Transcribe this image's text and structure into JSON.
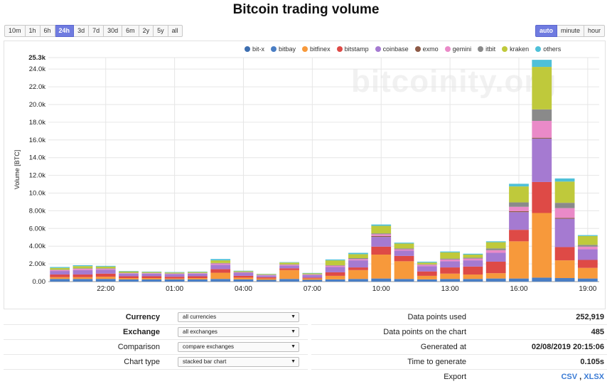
{
  "title": "Bitcoin trading volume",
  "watermark": "bitcoinity.org",
  "range_buttons": [
    {
      "label": "10m",
      "active": false
    },
    {
      "label": "1h",
      "active": false
    },
    {
      "label": "6h",
      "active": false
    },
    {
      "label": "24h",
      "active": true
    },
    {
      "label": "3d",
      "active": false
    },
    {
      "label": "7d",
      "active": false
    },
    {
      "label": "30d",
      "active": false
    },
    {
      "label": "6m",
      "active": false
    },
    {
      "label": "2y",
      "active": false
    },
    {
      "label": "5y",
      "active": false
    },
    {
      "label": "all",
      "active": false
    }
  ],
  "resolution_buttons": [
    {
      "label": "auto",
      "active": true
    },
    {
      "label": "minute",
      "active": false
    },
    {
      "label": "hour",
      "active": false
    }
  ],
  "controls": [
    {
      "label": "Currency",
      "bold": true,
      "value": "all currencies"
    },
    {
      "label": "Exchange",
      "bold": true,
      "value": "all exchanges"
    },
    {
      "label": "Comparison",
      "bold": false,
      "value": "compare exchanges"
    },
    {
      "label": "Chart type",
      "bold": false,
      "value": "stacked bar chart"
    }
  ],
  "stats": {
    "data_points_used": {
      "label": "Data points used",
      "value": "252,919"
    },
    "data_points_chart": {
      "label": "Data points on the chart",
      "value": "485"
    },
    "generated_at": {
      "label": "Generated at",
      "value": "02/08/2019 20:15:06"
    },
    "time_to_generate": {
      "label": "Time to generate",
      "value": "0.105s"
    },
    "export": {
      "label": "Export",
      "csv": "CSV",
      "sep": " , ",
      "xlsx": "XLSX"
    }
  },
  "chart_data": {
    "type": "bar",
    "stacked": true,
    "ylabel": "Volume [BTC]",
    "ylim": [
      0,
      25300
    ],
    "y_ticks": [
      "0.00",
      "2.00k",
      "4.00k",
      "6.00k",
      "8.00k",
      "10.0k",
      "12.0k",
      "14.0k",
      "16.0k",
      "18.0k",
      "20.0k",
      "22.0k",
      "24.0k",
      "25.3k"
    ],
    "y_tick_values": [
      0,
      2000,
      4000,
      6000,
      8000,
      10000,
      12000,
      14000,
      16000,
      18000,
      20000,
      22000,
      24000,
      25300
    ],
    "x_ticks": [
      "22:00",
      "01:00",
      "04:00",
      "07:00",
      "10:00",
      "13:00",
      "16:00",
      "19:00"
    ],
    "x_tick_positions": [
      2.5,
      5.5,
      8.5,
      11.5,
      14.5,
      17.5,
      20.5,
      23.5
    ],
    "categories": [
      "20:00",
      "21:00",
      "22:00",
      "23:00",
      "00:00",
      "01:00",
      "02:00",
      "03:00",
      "04:00",
      "05:00",
      "06:00",
      "07:00",
      "08:00",
      "09:00",
      "10:00",
      "11:00",
      "12:00",
      "13:00",
      "14:00",
      "15:00",
      "16:00",
      "17:00",
      "18:00",
      "19:00"
    ],
    "legend_position": "top-right",
    "series": [
      {
        "name": "bit-x",
        "color": "#3d6eb0",
        "values": [
          0,
          0,
          0,
          0,
          0,
          0,
          0,
          0,
          0,
          0,
          0,
          0,
          0,
          0,
          0,
          0,
          0,
          0,
          0,
          0,
          0,
          0,
          0,
          0
        ]
      },
      {
        "name": "bitbay",
        "color": "#4a7ec4",
        "values": [
          300,
          300,
          300,
          250,
          250,
          250,
          250,
          300,
          250,
          200,
          300,
          200,
          250,
          300,
          350,
          300,
          250,
          300,
          300,
          350,
          350,
          450,
          400,
          350
        ]
      },
      {
        "name": "bitfinex",
        "color": "#f7993b",
        "values": [
          200,
          200,
          250,
          150,
          150,
          100,
          150,
          700,
          200,
          150,
          1000,
          150,
          400,
          1000,
          2700,
          2000,
          400,
          600,
          500,
          600,
          4200,
          7300,
          2000,
          1200
        ]
      },
      {
        "name": "bitstamp",
        "color": "#de4a46",
        "values": [
          300,
          300,
          350,
          200,
          200,
          200,
          200,
          400,
          200,
          150,
          200,
          100,
          400,
          300,
          900,
          600,
          500,
          700,
          900,
          1300,
          1300,
          3500,
          1500,
          900
        ]
      },
      {
        "name": "coinbase",
        "color": "#a57ad1",
        "values": [
          400,
          500,
          450,
          300,
          300,
          300,
          300,
          500,
          350,
          200,
          300,
          300,
          600,
          800,
          1100,
          600,
          600,
          700,
          700,
          1000,
          2000,
          4900,
          3200,
          1200
        ]
      },
      {
        "name": "exmo",
        "color": "#8d5a46",
        "values": [
          0,
          0,
          0,
          0,
          0,
          0,
          0,
          0,
          0,
          0,
          0,
          0,
          0,
          0,
          100,
          0,
          0,
          0,
          0,
          0,
          100,
          100,
          100,
          0
        ]
      },
      {
        "name": "gemini",
        "color": "#ea8ac8",
        "values": [
          100,
          150,
          100,
          50,
          50,
          50,
          50,
          150,
          50,
          50,
          100,
          50,
          150,
          150,
          200,
          150,
          150,
          200,
          200,
          300,
          500,
          1900,
          1100,
          300
        ]
      },
      {
        "name": "itbit",
        "color": "#8a8a8a",
        "values": [
          50,
          50,
          50,
          50,
          30,
          30,
          30,
          50,
          30,
          30,
          50,
          30,
          50,
          100,
          100,
          100,
          50,
          100,
          100,
          200,
          500,
          1300,
          600,
          200
        ]
      },
      {
        "name": "kraken",
        "color": "#bfc93b",
        "values": [
          200,
          250,
          200,
          150,
          100,
          100,
          100,
          300,
          100,
          70,
          200,
          100,
          550,
          450,
          850,
          550,
          200,
          700,
          350,
          700,
          1800,
          4800,
          2400,
          1000
        ]
      },
      {
        "name": "others",
        "color": "#4fc0d8",
        "values": [
          100,
          100,
          80,
          50,
          50,
          50,
          50,
          150,
          50,
          30,
          50,
          50,
          100,
          150,
          150,
          100,
          100,
          100,
          100,
          100,
          300,
          800,
          350,
          100
        ]
      }
    ]
  }
}
